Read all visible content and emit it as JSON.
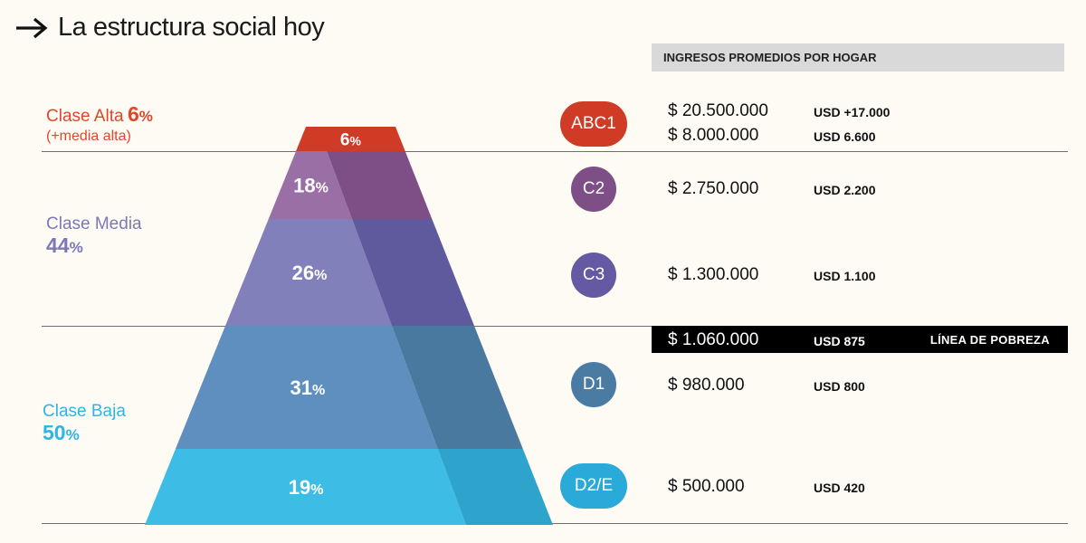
{
  "title": "La estructura social hoy",
  "header": "INGRESOS PROMEDIOS POR HOGAR",
  "classes": {
    "alta": {
      "name": "Clase Alta",
      "pct": "6",
      "pct_sign": "%",
      "sub": "(+media alta)",
      "color": "#e0472a"
    },
    "media": {
      "name": "Clase Media",
      "pct": "44",
      "pct_sign": "%",
      "color": "#7c78b8"
    },
    "baja": {
      "name": "Clase Baja",
      "pct": "50",
      "pct_sign": "%",
      "color": "#2fb5e3"
    }
  },
  "segments": [
    {
      "code": "ABC1",
      "label": "6",
      "sign": "%",
      "color": "#cf3b25",
      "amounts": [
        "$ 20.500.000",
        "$ 8.000.000"
      ],
      "usd": [
        "USD +17.000",
        "USD 6.600"
      ]
    },
    {
      "code": "C2",
      "label": "18",
      "sign": "%",
      "color": "#7d4f86",
      "amounts": [
        "$ 2.750.000"
      ],
      "usd": [
        "USD 2.200"
      ]
    },
    {
      "code": "C3",
      "label": "26",
      "sign": "%",
      "color": "#6459a2",
      "amounts": [
        "$ 1.300.000"
      ],
      "usd": [
        "USD 1.100"
      ]
    },
    {
      "code": "D1",
      "label": "31",
      "sign": "%",
      "color": "#4a7ba3",
      "amounts": [
        "$ 980.000"
      ],
      "usd": [
        "USD 800"
      ]
    },
    {
      "code": "D2/E",
      "label": "19",
      "sign": "%",
      "color": "#2aaad8",
      "amounts": [
        "$ 500.000"
      ],
      "usd": [
        "USD 420"
      ]
    }
  ],
  "poverty": {
    "amount": "$ 1.060.000",
    "usd": "USD 875",
    "label": "LÍNEA DE POBREZA"
  },
  "chart_data": {
    "type": "pyramid",
    "title": "La estructura social hoy",
    "categories": [
      "ABC1",
      "C2",
      "C3",
      "D1",
      "D2/E"
    ],
    "values": [
      6,
      18,
      26,
      31,
      19
    ],
    "groups": [
      {
        "name": "Clase Alta",
        "value": 6,
        "members": [
          "ABC1"
        ]
      },
      {
        "name": "Clase Media",
        "value": 44,
        "members": [
          "C2",
          "C3"
        ]
      },
      {
        "name": "Clase Baja",
        "value": 50,
        "members": [
          "D1",
          "D2/E"
        ]
      }
    ],
    "income_ars": [
      "$ 20.500.000 / $ 8.000.000",
      "$ 2.750.000",
      "$ 1.300.000",
      "$ 980.000",
      "$ 500.000"
    ],
    "income_usd": [
      "USD +17.000 / USD 6.600",
      "USD 2.200",
      "USD 1.100",
      "USD 800",
      "USD 420"
    ],
    "poverty_line": {
      "ars": "$ 1.060.000",
      "usd": "USD 875"
    }
  }
}
